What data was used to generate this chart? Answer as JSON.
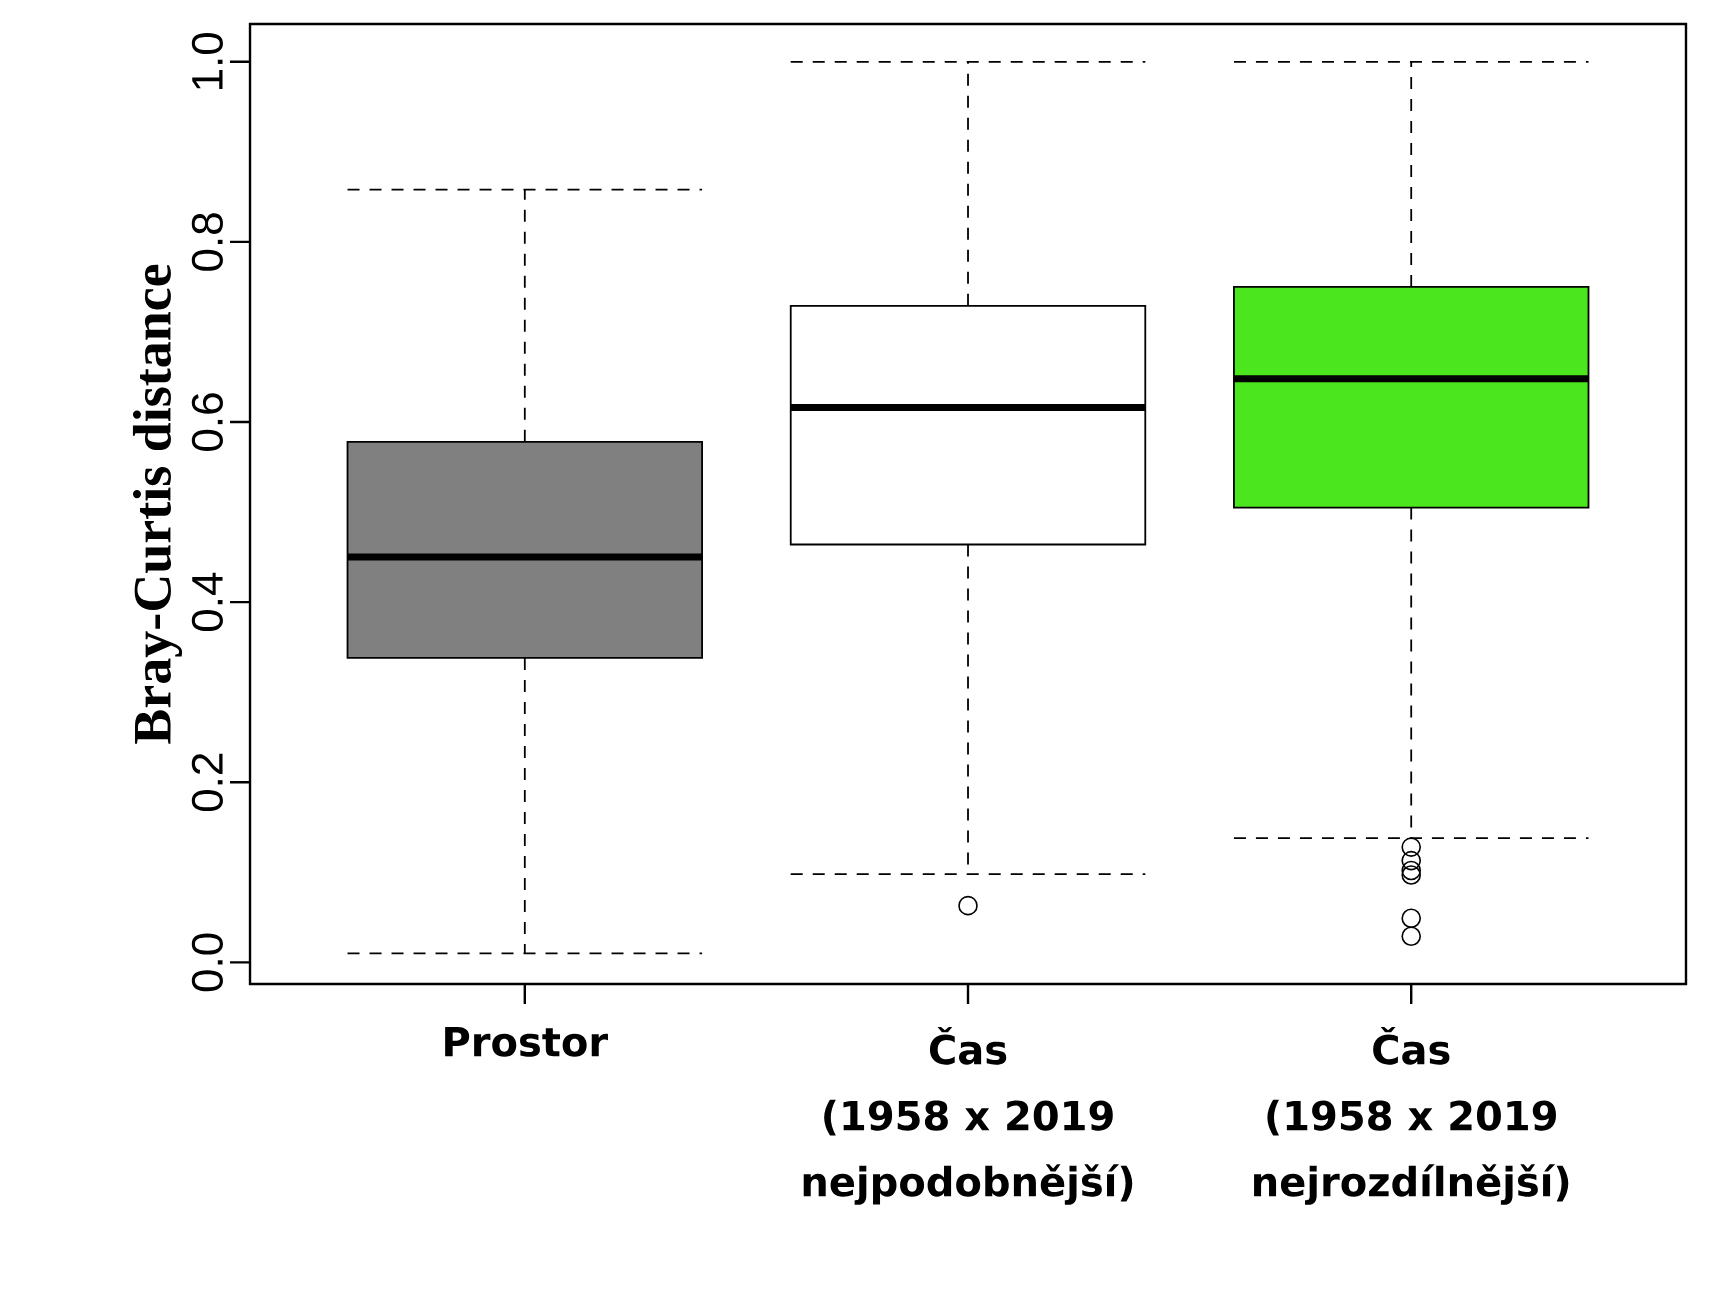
{
  "chart_data": {
    "type": "box",
    "ylabel": "Bray-Curtis  distance",
    "categories": [
      "Prostor",
      "Čas\n(1958 x 2019\nnejpodobnější)",
      "Čas\n(1958 x 2019\nnejrozdílnější)"
    ],
    "colors": [
      "#808080",
      "#ffffff",
      "#4ce61e"
    ],
    "boxes": [
      {
        "low": 0.01,
        "q1": 0.338,
        "median": 0.45,
        "q3": 0.578,
        "high": 0.858
      },
      {
        "low": 0.098,
        "q1": 0.464,
        "median": 0.616,
        "q3": 0.729,
        "high": 1.0,
        "outliers": [
          0.063
        ]
      },
      {
        "low": 0.138,
        "q1": 0.505,
        "median": 0.648,
        "q3": 0.75,
        "high": 1.0,
        "outliers": [
          0.128,
          0.113,
          0.102,
          0.097,
          0.049,
          0.029
        ]
      }
    ],
    "ylim": [
      -0.024,
      1.042
    ],
    "yticks": [
      {
        "value": 0,
        "label": "0.0"
      },
      0.2,
      0.4,
      0.6,
      0.8,
      {
        "value": 1,
        "label": "1.0"
      }
    ],
    "marker": "circle"
  }
}
